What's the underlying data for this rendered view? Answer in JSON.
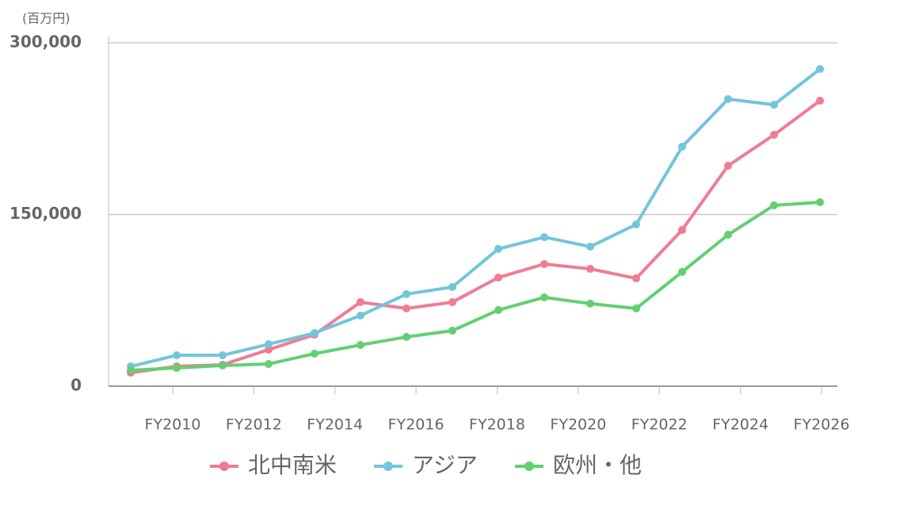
{
  "chart_data": {
    "type": "line",
    "unit_label": "(百万円)",
    "xticks": [
      "FY2010",
      "FY2012",
      "FY2014",
      "FY2016",
      "FY2018",
      "FY2020",
      "FY2022",
      "FY2024",
      "FY2026"
    ],
    "series": [
      {
        "name": "北中南米",
        "color": "#f07c93",
        "values": [
          11800,
          17300,
          18700,
          31900,
          45000,
          73400,
          67900,
          73400,
          94900,
          106700,
          102500,
          94200,
          136500,
          192600,
          219600,
          249400
        ]
      },
      {
        "name": "アジア",
        "color": "#72c6da",
        "values": [
          17300,
          27000,
          27000,
          36700,
          46400,
          61700,
          80400,
          86600,
          119900,
          130200,
          121900,
          141300,
          209200,
          250800,
          245900,
          277100
        ]
      },
      {
        "name": "欧州・他",
        "color": "#62d071",
        "values": [
          13900,
          15900,
          18000,
          19400,
          28400,
          36000,
          43000,
          48500,
          66500,
          77600,
          72100,
          67900,
          99800,
          132300,
          158000,
          160700
        ]
      }
    ],
    "ylim": [
      0,
      300000
    ],
    "yticks": [
      {
        "value": 0,
        "label": "0"
      },
      {
        "value": 150000,
        "label": "150,000"
      },
      {
        "value": 300000,
        "label": "300,000"
      }
    ],
    "grid": true
  }
}
